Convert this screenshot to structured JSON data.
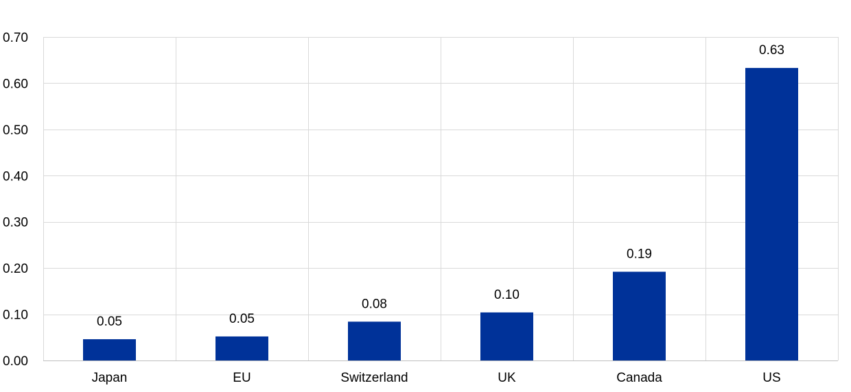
{
  "chart_data": {
    "type": "bar",
    "title": "",
    "xlabel": "",
    "ylabel": "",
    "categories": [
      "Japan",
      "EU",
      "Switzerland",
      "UK",
      "Canada",
      "US"
    ],
    "values": [
      0.046,
      0.052,
      0.084,
      0.104,
      0.192,
      0.633
    ],
    "data_labels": [
      "0.05",
      "0.05",
      "0.08",
      "0.10",
      "0.19",
      "0.63"
    ],
    "ylim": [
      0,
      0.7
    ],
    "yticks": [
      0,
      0.1,
      0.2,
      0.3,
      0.4,
      0.5,
      0.6,
      0.7
    ],
    "ytick_labels": [
      "0.00",
      "0.10",
      "0.20",
      "0.30",
      "0.40",
      "0.50",
      "0.60",
      "0.70"
    ],
    "grid": true,
    "bar_color": "#003299",
    "grid_color": "#d9d9d9"
  }
}
